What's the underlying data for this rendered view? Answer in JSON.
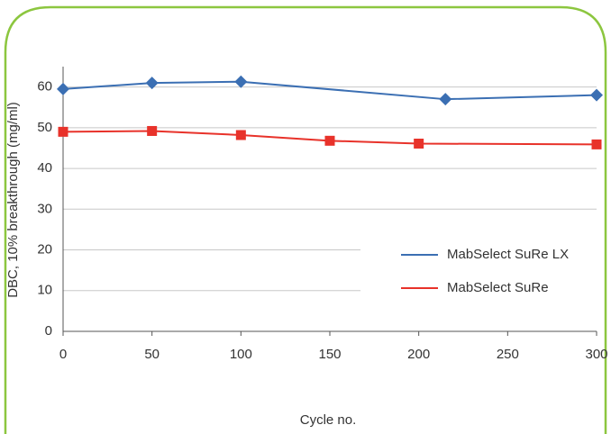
{
  "chart_data": {
    "type": "line",
    "xlabel": "Cycle no.",
    "ylabel": "DBC, 10% breakthrough (mg/ml)",
    "xlim": [
      0,
      300
    ],
    "xticks": [
      0,
      50,
      100,
      150,
      200,
      250,
      300
    ],
    "ylim": [
      0,
      65
    ],
    "yticks": [
      0,
      10,
      20,
      30,
      40,
      50,
      60
    ],
    "grid": true,
    "legend": "right",
    "series": [
      {
        "name": "MabSelect SuRe LX",
        "color": "#3b6fb3",
        "marker": "diamond",
        "x": [
          0,
          50,
          100,
          215,
          300
        ],
        "values": [
          59.5,
          61,
          61.3,
          57,
          58
        ]
      },
      {
        "name": "MabSelect SuRe",
        "color": "#e8322a",
        "marker": "square",
        "x": [
          0,
          50,
          100,
          150,
          200,
          300
        ],
        "values": [
          49,
          49.2,
          48.2,
          46.8,
          46.1,
          45.9
        ]
      }
    ]
  }
}
